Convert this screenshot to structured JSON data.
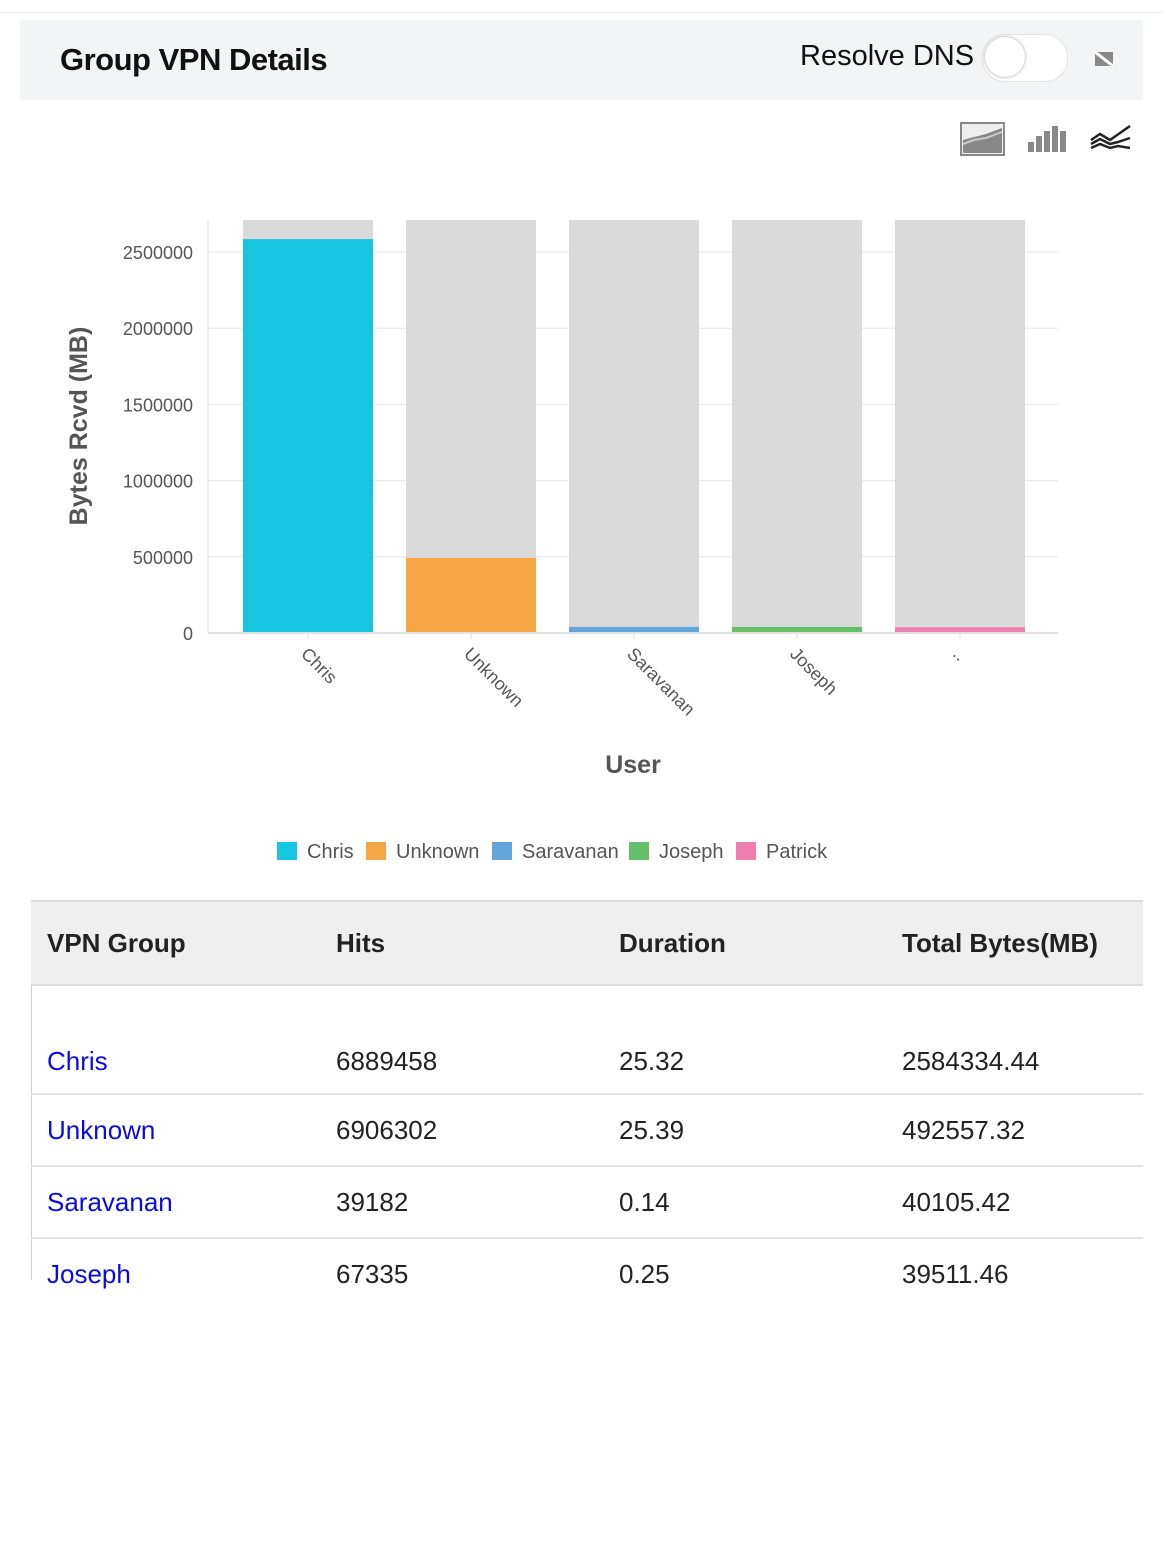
{
  "header": {
    "title": "Group VPN Details",
    "resolve_dns_label": "Resolve DNS",
    "resolve_dns_on": false
  },
  "toolbar": {
    "icons": [
      "area-chart-icon",
      "bar-chart-icon",
      "line-chart-icon"
    ]
  },
  "colors": {
    "Chris": "#16c5e0",
    "Unknown": "#f5a746",
    "Saravanan": "#62a6dc",
    "Joseph": "#66bf6a",
    "Patrick": "#ef7fb0",
    "background_bar": "#dadada"
  },
  "chart_data": {
    "type": "bar",
    "xlabel": "User",
    "ylabel": "Bytes Rcvd (MB)",
    "categories": [
      "Chris",
      "Unknown",
      "Saravanan",
      "Joseph",
      ".."
    ],
    "values": [
      2584334.44,
      492557.32,
      40105.42,
      39511.46,
      38000
    ],
    "ylim": [
      0,
      2710000
    ],
    "yticks": [
      "0",
      "500000",
      "1000000",
      "1500000",
      "2000000",
      "2500000"
    ],
    "grid": true,
    "legend_position": "bottom",
    "legend": [
      "Chris",
      "Unknown",
      "Saravanan",
      "Joseph",
      "Patrick"
    ]
  },
  "table": {
    "headers": [
      "VPN Group",
      "Hits",
      "Duration",
      "Total Bytes(MB)"
    ],
    "rows": [
      [
        "Chris",
        "6889458",
        "25.32",
        "2584334.44"
      ],
      [
        "Unknown",
        "6906302",
        "25.39",
        "492557.32"
      ],
      [
        "Saravanan",
        "39182",
        "0.14",
        "40105.42"
      ],
      [
        "Joseph",
        "67335",
        "0.25",
        "39511.46"
      ]
    ]
  }
}
